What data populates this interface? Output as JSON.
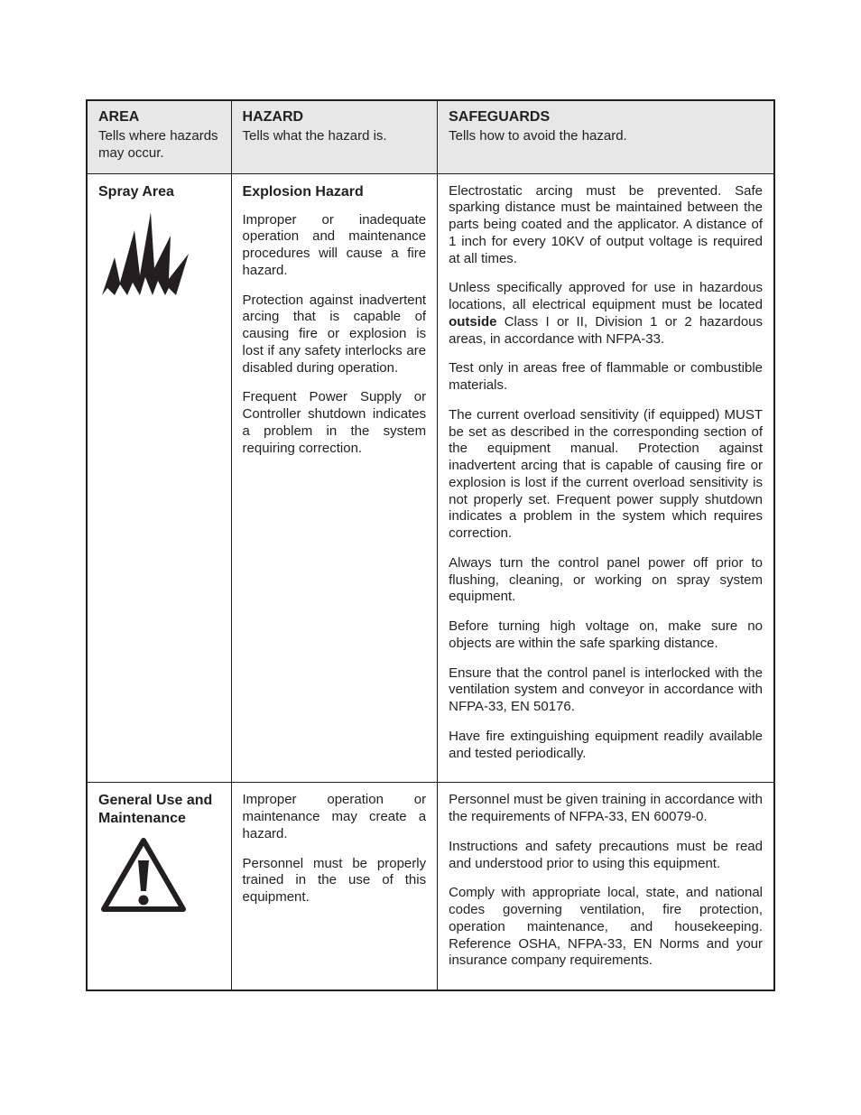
{
  "colors": {
    "text": "#231f20",
    "border": "#231f20",
    "headerBg": "#e7e7e8",
    "pageBg": "#ffffff"
  },
  "columns": {
    "area": {
      "title": "AREA",
      "subtitle": "Tells where hazards may occur."
    },
    "hazard": {
      "title": "HAZARD",
      "subtitle": "Tells what the hazard is."
    },
    "safe": {
      "title": "SAFEGUARDS",
      "subtitle": "Tells how to avoid the hazard."
    }
  },
  "rows": [
    {
      "area_title": "Spray Area",
      "area_icon": "explosion",
      "hazard_title": "Explosion Hazard",
      "hazard_paras": [
        "Improper or inadequate operation and maintenance procedures will cause a fire hazard.",
        "Protection against inadvertent arcing that is capable of causing fire or explosion is lost if any safety interlocks are disabled during operation.",
        "Frequent Power Supply or Controller shutdown indicates a problem in the system requiring correction."
      ],
      "safe_paras": [
        "Electrostatic arcing must be prevented.  Safe sparking distance must be maintained between the parts being coated and the applicator. A distance of 1 inch for every 10KV of output voltage is required at all times.",
        "Unless specifically approved for use in hazardous locations, all electrical equipment must be located <b>outside</b> Class I or II, Division 1 or 2 hazardous areas, in accordance with NFPA-33.",
        "Test only in areas free of flammable or combustible materials.",
        "The current overload sensitivity (if equipped) MUST be set as described in the corresponding section of the equipment manual.  Protection against inadvertent arcing that is capable of causing fire or explosion is lost if the current overload sensitivity is not properly set. Frequent power supply shutdown indicates a problem in the system which requires correction.",
        "Always turn the control panel power off prior to flushing, cleaning, or working on spray system equipment.",
        "Before turning high voltage on, make sure no objects are within the safe sparking distance.",
        "Ensure that the control panel is interlocked with the ventilation system and conveyor in accordance with NFPA-33, EN 50176.",
        "Have fire extinguishing equipment readily available and tested periodically."
      ]
    },
    {
      "area_title": "General Use and Maintenance",
      "area_icon": "warning",
      "hazard_title": "",
      "hazard_paras": [
        "Improper operation or maintenance may create a hazard.",
        "Personnel must be properly trained in the use of this equipment."
      ],
      "safe_paras": [
        "Personnel must be given training in accordance with the requirements of NFPA-33, EN 60079-0.",
        "Instructions and safety precautions must be read and understood prior to using this equipment.",
        "Comply with appropriate local, state, and national codes governing ventilation, fire protection, operation maintenance, and housekeeping. Reference OSHA, NFPA-33, EN Norms and your insurance company requirements."
      ]
    }
  ]
}
